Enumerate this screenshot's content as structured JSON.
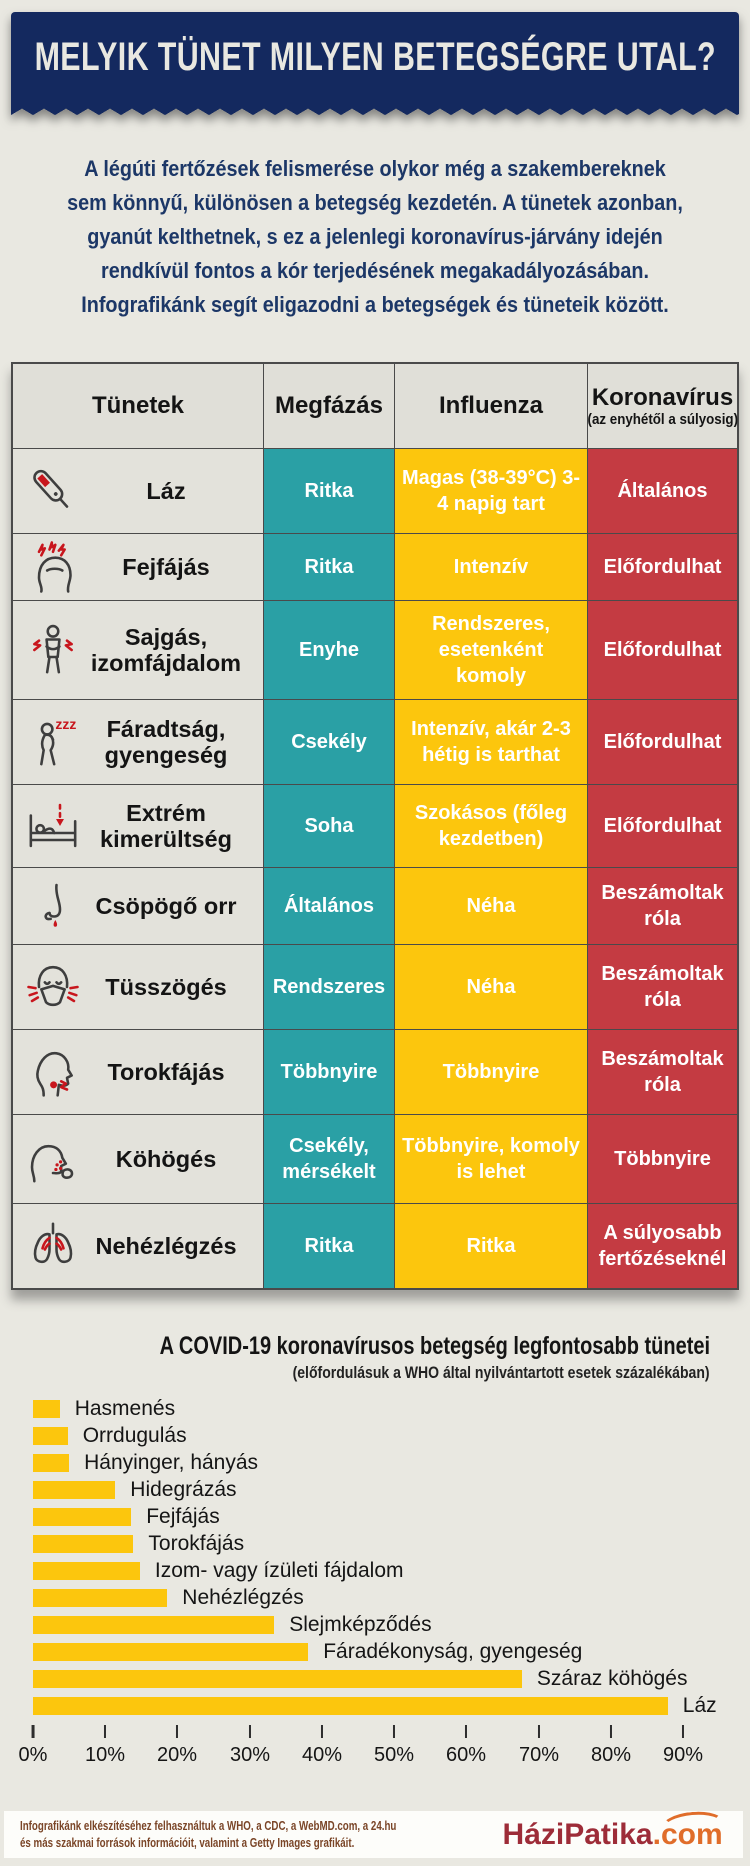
{
  "banner": {
    "title": "MELYIK TÜNET MILYEN BETEGSÉGRE UTAL?"
  },
  "intro": {
    "lines": [
      "A légúti fertőzések felismerése olykor még a szakembereknek",
      "sem könnyű, különösen a betegség kezdetén. A tünetek azonban,",
      "gyanút kelthetnek, s ez a jelenlegi koronavírus-járvány idején",
      "rendkívül fontos a kór terjedésének megakadályozásában.",
      "Infografikánk segít eligazodni a betegségek és tüneteik között."
    ]
  },
  "table": {
    "headers": {
      "symptom": "Tünetek",
      "cold": "Megfázás",
      "flu": "Influenza",
      "corona": "Koronavírus",
      "corona_note": "(az enyhétől a súlyosig)"
    },
    "rows": [
      {
        "icon": "thermometer-icon",
        "symptom": "Láz",
        "cold": "Ritka",
        "flu": "Magas (38-39°C) 3-4 napig tart",
        "corona": "Általános"
      },
      {
        "icon": "headache-icon",
        "symptom": "Fejfájás",
        "cold": "Ritka",
        "flu": "Intenzív",
        "corona": "Előfordulhat"
      },
      {
        "icon": "muscle-pain-icon",
        "symptom": "Sajgás, izomfájdalom",
        "cold": "Enyhe",
        "flu": "Rendszeres, esetenként komoly",
        "corona": "Előfordulhat"
      },
      {
        "icon": "fatigue-icon",
        "symptom": "Fáradtság, gyengeség",
        "cold": "Csekély",
        "flu": "Intenzív, akár 2-3 hétig is tarthat",
        "corona": "Előfordulhat"
      },
      {
        "icon": "bed-rest-icon",
        "symptom": "Extrém kimerültség",
        "cold": "Soha",
        "flu": "Szokásos (főleg kezdetben)",
        "corona": "Előfordulhat"
      },
      {
        "icon": "runny-nose-icon",
        "symptom": "Csöpögő orr",
        "cold": "Általános",
        "flu": "Néha",
        "corona": "Beszámoltak róla"
      },
      {
        "icon": "sneezing-icon",
        "symptom": "Tüsszögés",
        "cold": "Rendszeres",
        "flu": "Néha",
        "corona": "Beszámoltak róla"
      },
      {
        "icon": "sore-throat-icon",
        "symptom": "Torokfájás",
        "cold": "Többnyire",
        "flu": "Többnyire",
        "corona": "Beszámoltak róla"
      },
      {
        "icon": "cough-icon",
        "symptom": "Köhögés",
        "cold": "Csekély, mérsékelt",
        "flu": "Többnyire, komoly is lehet",
        "corona": "Többnyire"
      },
      {
        "icon": "lungs-icon",
        "symptom": "Nehézlégzés",
        "cold": "Ritka",
        "flu": "Ritka",
        "corona": "A súlyosabb fertőzéseknél"
      }
    ]
  },
  "chart_data": {
    "type": "bar",
    "orientation": "horizontal",
    "title": "A COVID-19 koronavírusos betegség legfontosabb tünetei",
    "subtitle": "(előfordulásuk a WHO által nyilvántartott esetek százalékában)",
    "categories": [
      "Hasmenés",
      "Orrdugulás",
      "Hányinger, hányás",
      "Hidegrázás",
      "Fejfájás",
      "Torokfájás",
      "Izom- vagy ízületi fájdalom",
      "Nehézlégzés",
      "Slejmképződés",
      "Fáradékonyság, gyengeség",
      "Száraz köhögés",
      "Láz"
    ],
    "values": [
      3.7,
      4.8,
      5.0,
      11.4,
      13.6,
      13.9,
      14.8,
      18.6,
      33.4,
      38.1,
      67.7,
      87.9
    ],
    "unit": "%",
    "xlim": [
      0,
      90
    ],
    "x_tick_labels": [
      "0%",
      "10%",
      "20%",
      "30%",
      "40%",
      "50%",
      "60%",
      "70%",
      "80%",
      "90%"
    ],
    "bar_color": "#fcc60d",
    "grid": false,
    "legend": false
  },
  "footer": {
    "sources_line1": "Infografikánk elkészítéséhez felhasználtuk a WHO, a CDC, a WebMD.com, a 24.hu",
    "sources_line2": "és más szakmai források információit, valamint a Getty Images grafikáit.",
    "logo_main": "HáziPatika",
    "logo_suffix": ".com"
  },
  "colors": {
    "banner_navy": "#14295f",
    "cold_teal": "#2aa0a5",
    "flu_yellow": "#fcc60d",
    "corona_red": "#c43b42",
    "page_bg": "#e9e8e1",
    "intro_text": "#1c3767",
    "footer_text": "#7a4527",
    "logo_red": "#9d2c38",
    "logo_orange": "#e06d2a"
  }
}
